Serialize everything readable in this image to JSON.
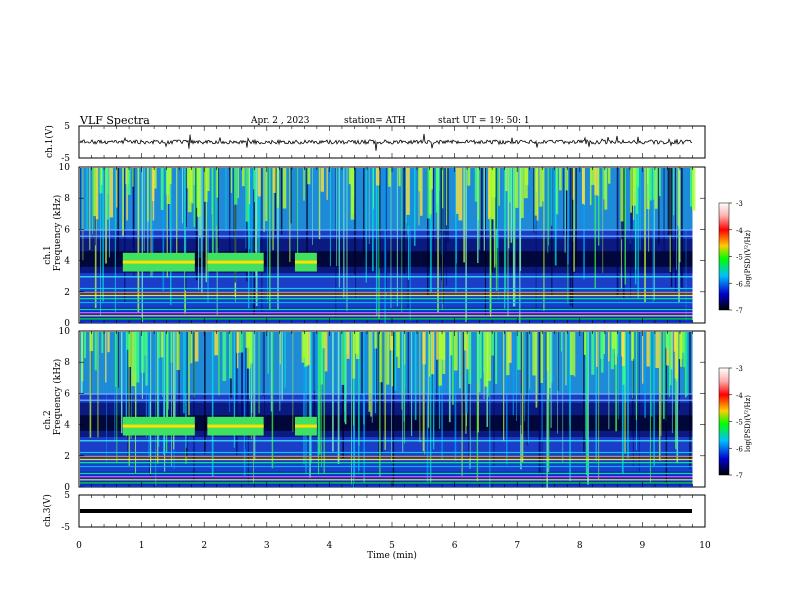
{
  "header": {
    "title": "VLF  Spectra",
    "date": "Apr. 2  , 2023",
    "station": "station= ATH",
    "start": "start  UT  =    19: 50: 1"
  },
  "colorbar": {
    "label": "log(PSD)(V²/Hz)",
    "ticks": [
      "-3",
      "-4",
      "-5",
      "-6",
      "-7"
    ],
    "stops": [
      "#ffffff",
      "#ff0000",
      "#ffcc00",
      "#00ff00",
      "#00bfff",
      "#0000cd",
      "#000000"
    ]
  },
  "chart_data": [
    {
      "type": "line",
      "panel": "ch1-waveform",
      "ylabel": "ch.1(V)",
      "ylim": [
        -5,
        5
      ],
      "yticks": [
        "5",
        "-5"
      ],
      "xlim": [
        0,
        10
      ],
      "description_values": {
        "mean": 0,
        "approx_peak": 1.5
      },
      "x": [
        0,
        1,
        2,
        3,
        4,
        5,
        6,
        7,
        8,
        9,
        9.8
      ],
      "y": [
        0,
        0,
        0,
        0,
        0,
        0,
        0,
        0,
        0,
        0,
        0
      ]
    },
    {
      "type": "heatmap",
      "panel": "ch1-spectrogram",
      "ylabel": "ch.1\nFrequency  (kHz)",
      "ylim": [
        0,
        10
      ],
      "yticks": [
        "0",
        "2",
        "4",
        "6",
        "8",
        "10"
      ],
      "xlim": [
        0,
        10
      ],
      "value_range": [
        -7,
        -3
      ],
      "features": [
        {
          "name": "band",
          "x0": 0.7,
          "x1": 1.85,
          "f": 3.9
        },
        {
          "name": "band",
          "x0": 2.05,
          "x1": 2.95,
          "f": 3.9
        },
        {
          "name": "band",
          "x0": 3.45,
          "x1": 3.8,
          "f": 3.9
        }
      ]
    },
    {
      "type": "heatmap",
      "panel": "ch2-spectrogram",
      "ylabel": "ch.2\nFrequency  (kHz)",
      "ylim": [
        0,
        10
      ],
      "yticks": [
        "0",
        "2",
        "4",
        "6",
        "8",
        "10"
      ],
      "xlim": [
        0,
        10
      ],
      "value_range": [
        -7,
        -3
      ],
      "features": [
        {
          "name": "band",
          "x0": 0.7,
          "x1": 1.85,
          "f": 3.9
        },
        {
          "name": "band",
          "x0": 2.05,
          "x1": 2.95,
          "f": 3.9
        },
        {
          "name": "band",
          "x0": 3.45,
          "x1": 3.8,
          "f": 3.9
        }
      ]
    },
    {
      "type": "line",
      "panel": "ch3-waveform",
      "ylabel": "ch.3(V)",
      "ylim": [
        -5,
        5
      ],
      "yticks": [
        "5",
        "-5"
      ],
      "xlim": [
        0,
        10
      ],
      "x": [
        0,
        9.8
      ],
      "y": [
        0,
        0
      ]
    }
  ],
  "xaxis": {
    "label": "Time  (min)",
    "ticks": [
      "0",
      "1",
      "2",
      "3",
      "4",
      "5",
      "6",
      "7",
      "8",
      "9",
      "10"
    ]
  }
}
